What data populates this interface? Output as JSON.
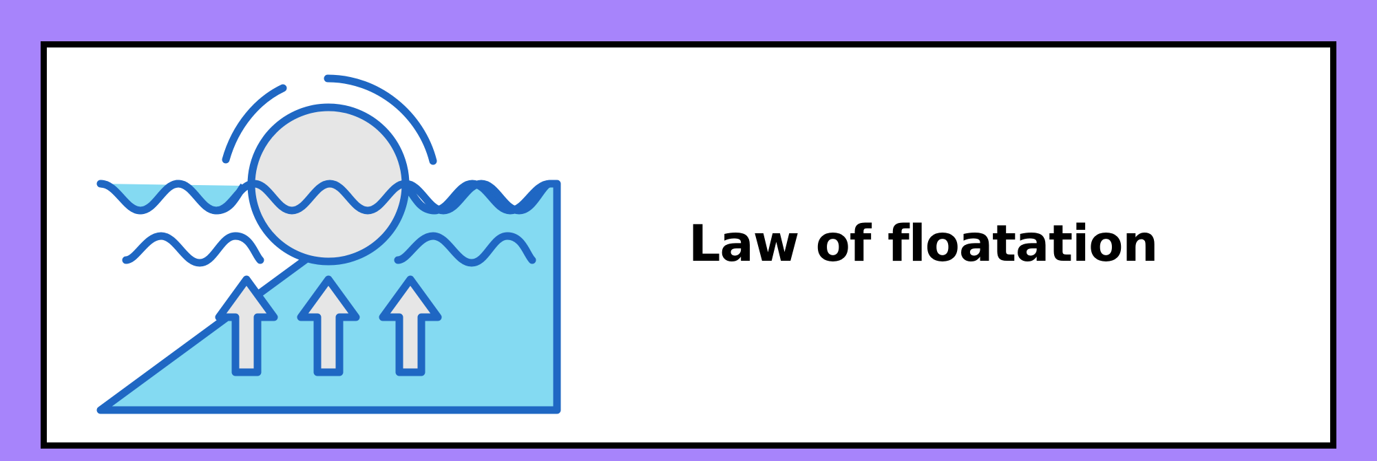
{
  "title": "Law of floatation",
  "colors": {
    "background": "#a784fb",
    "card": "#ffffff",
    "card_border": "#000000",
    "water": "#84daf2",
    "outline": "#1f67c3",
    "ball": "#e6e6e6",
    "text": "#000000"
  },
  "illustration": {
    "icon": "floating-ball-buoyancy-icon",
    "arrows": 3
  }
}
